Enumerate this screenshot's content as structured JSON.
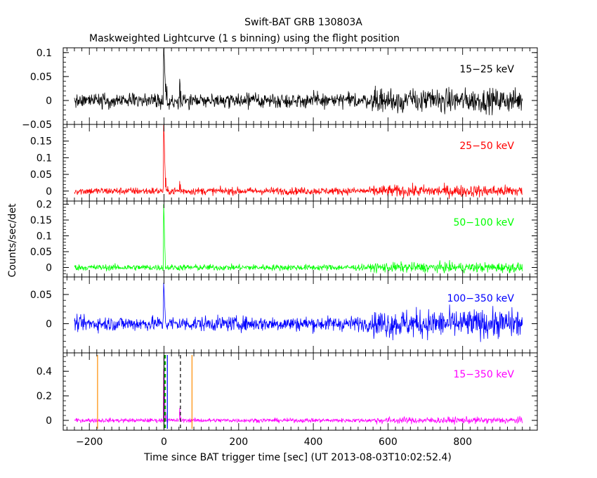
{
  "chart_data": {
    "type": "line",
    "title": "Swift-BAT GRB 130803A",
    "subtitle": "Maskweighted Lightcurve (1 s binning) using the flight position",
    "xlabel": "Time since BAT trigger time [sec] (UT 2013-08-03T10:02:52.4)",
    "ylabel": "Counts/sec/det",
    "xlim": [
      -270,
      1000
    ],
    "xticks": [
      -200,
      0,
      200,
      400,
      600,
      800
    ],
    "x_range_data": [
      -240,
      960
    ],
    "panels": [
      {
        "band": "15−25 keV",
        "color": "#000000",
        "ylim": [
          -0.05,
          0.11
        ],
        "yticks": [
          -0.05,
          0,
          0.05,
          0.1
        ],
        "yticklabels": [
          "−0.05",
          "0",
          "0.05",
          "0.1"
        ],
        "noise": 0.011,
        "peaks": [
          [
            -1,
            0.11
          ],
          [
            0,
            0.1
          ],
          [
            1,
            0.085
          ],
          [
            2,
            0.06
          ],
          [
            3,
            0.045
          ],
          [
            5,
            0.035
          ],
          [
            8,
            0.03
          ],
          [
            42,
            0.045
          ],
          [
            43,
            0.035
          ],
          [
            45,
            0.02
          ]
        ]
      },
      {
        "band": "25−50 keV",
        "color": "#ff0000",
        "ylim": [
          -0.03,
          0.2
        ],
        "yticks": [
          0,
          0.05,
          0.1,
          0.15
        ],
        "yticklabels": [
          "0",
          "0.05",
          "0.1",
          "0.15"
        ],
        "noise": 0.008,
        "peaks": [
          [
            -1,
            0.2
          ],
          [
            0,
            0.18
          ],
          [
            1,
            0.14
          ],
          [
            2,
            0.09
          ],
          [
            3,
            0.06
          ],
          [
            5,
            0.04
          ],
          [
            42,
            0.03
          ],
          [
            44,
            0.02
          ]
        ]
      },
      {
        "band": "50−100 keV",
        "color": "#00ff00",
        "ylim": [
          -0.03,
          0.21
        ],
        "yticks": [
          0,
          0.05,
          0.1,
          0.15,
          0.2
        ],
        "yticklabels": [
          "0",
          "0.05",
          "0.1",
          "0.15",
          "0.2"
        ],
        "noise": 0.007,
        "peaks": [
          [
            -1,
            0.2
          ],
          [
            0,
            0.17
          ],
          [
            1,
            0.12
          ],
          [
            2,
            0.07
          ],
          [
            3,
            0.04
          ]
        ]
      },
      {
        "band": "100−350 keV",
        "color": "#0000ff",
        "ylim": [
          -0.05,
          0.08
        ],
        "yticks": [
          0,
          0.05
        ],
        "yticklabels": [
          "0",
          "0.05"
        ],
        "noise": 0.009,
        "peaks": [
          [
            -1,
            0.07
          ],
          [
            0,
            0.06
          ],
          [
            1,
            0.045
          ],
          [
            2,
            0.03
          ],
          [
            3,
            0.02
          ]
        ]
      },
      {
        "band": "15−350 keV",
        "color": "#ff00ff",
        "ylim": [
          -0.08,
          0.55
        ],
        "yticks": [
          0,
          0.2,
          0.4
        ],
        "yticklabels": [
          "0",
          "0.2",
          "0.4"
        ],
        "noise": 0.012,
        "peaks": [
          [
            -1,
            0.42
          ],
          [
            0,
            0.38
          ],
          [
            1,
            0.28
          ],
          [
            2,
            0.18
          ],
          [
            3,
            0.1
          ],
          [
            5,
            0.06
          ],
          [
            42,
            0.1
          ],
          [
            43,
            0.07
          ],
          [
            45,
            0.03
          ]
        ],
        "markers": [
          {
            "x": -178,
            "color": "#ff8c00",
            "dash": false
          },
          {
            "x": 75,
            "color": "#ff8c00",
            "dash": false
          },
          {
            "x": 0,
            "color": "#000000",
            "dash": false
          },
          {
            "x": 2,
            "color": "#00aa00",
            "dash": true
          },
          {
            "x": 4,
            "color": "#00aa00",
            "dash": true
          },
          {
            "x": 9,
            "color": "#0000ff",
            "dash": false
          },
          {
            "x": 44,
            "color": "#000000",
            "dash": true
          }
        ]
      }
    ]
  }
}
